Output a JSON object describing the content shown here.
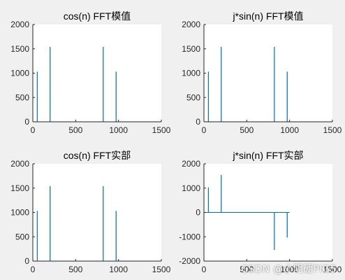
{
  "colors": {
    "figure_bg": "#f0f0f0",
    "axes_bg": "#ffffff",
    "line": "#0072bd",
    "axis": "#262626"
  },
  "watermark": "CSDN @小明硬PIG5",
  "chart_data": [
    {
      "type": "line",
      "title": "cos(n) FFT模值",
      "xlim": [
        0,
        1500
      ],
      "ylim": [
        0,
        2000
      ],
      "xticks": [
        0,
        500,
        1000,
        1500
      ],
      "yticks": [
        0,
        500,
        1000,
        1500,
        2000
      ],
      "grid": false,
      "series": [
        {
          "baseline": 0,
          "x_end": 1000,
          "spikes": [
            {
              "x": 52,
              "y": 1030
            },
            {
              "x": 202,
              "y": 1540
            },
            {
              "x": 822,
              "y": 1540
            },
            {
              "x": 972,
              "y": 1030
            }
          ]
        }
      ]
    },
    {
      "type": "line",
      "title": "j*sin(n) FFT模值",
      "xlim": [
        0,
        1500
      ],
      "ylim": [
        0,
        2000
      ],
      "xticks": [
        0,
        500,
        1000,
        1500
      ],
      "yticks": [
        0,
        500,
        1000,
        1500,
        2000
      ],
      "grid": false,
      "series": [
        {
          "baseline": 0,
          "x_end": 1000,
          "spikes": [
            {
              "x": 52,
              "y": 1030
            },
            {
              "x": 202,
              "y": 1540
            },
            {
              "x": 822,
              "y": 1540
            },
            {
              "x": 972,
              "y": 1030
            }
          ]
        }
      ]
    },
    {
      "type": "line",
      "title": "cos(n) FFT实部",
      "xlim": [
        0,
        1500
      ],
      "ylim": [
        0,
        2000
      ],
      "xticks": [
        0,
        500,
        1000,
        1500
      ],
      "yticks": [
        0,
        500,
        1000,
        1500,
        2000
      ],
      "grid": false,
      "series": [
        {
          "baseline": 0,
          "x_end": 1000,
          "spikes": [
            {
              "x": 52,
              "y": 1030
            },
            {
              "x": 202,
              "y": 1540
            },
            {
              "x": 822,
              "y": 1540
            },
            {
              "x": 972,
              "y": 1030
            }
          ]
        }
      ]
    },
    {
      "type": "line",
      "title": "j*sin(n) FFT实部",
      "xlim": [
        0,
        1500
      ],
      "ylim": [
        -2000,
        2000
      ],
      "xticks": [
        0,
        500,
        1000,
        1500
      ],
      "yticks": [
        -2000,
        -1000,
        0,
        1000,
        2000
      ],
      "grid": false,
      "series": [
        {
          "baseline": 0,
          "x_end": 1000,
          "spikes": [
            {
              "x": 52,
              "y": 1030
            },
            {
              "x": 202,
              "y": 1540
            },
            {
              "x": 822,
              "y": -1540
            },
            {
              "x": 972,
              "y": -1030
            }
          ]
        }
      ]
    }
  ]
}
